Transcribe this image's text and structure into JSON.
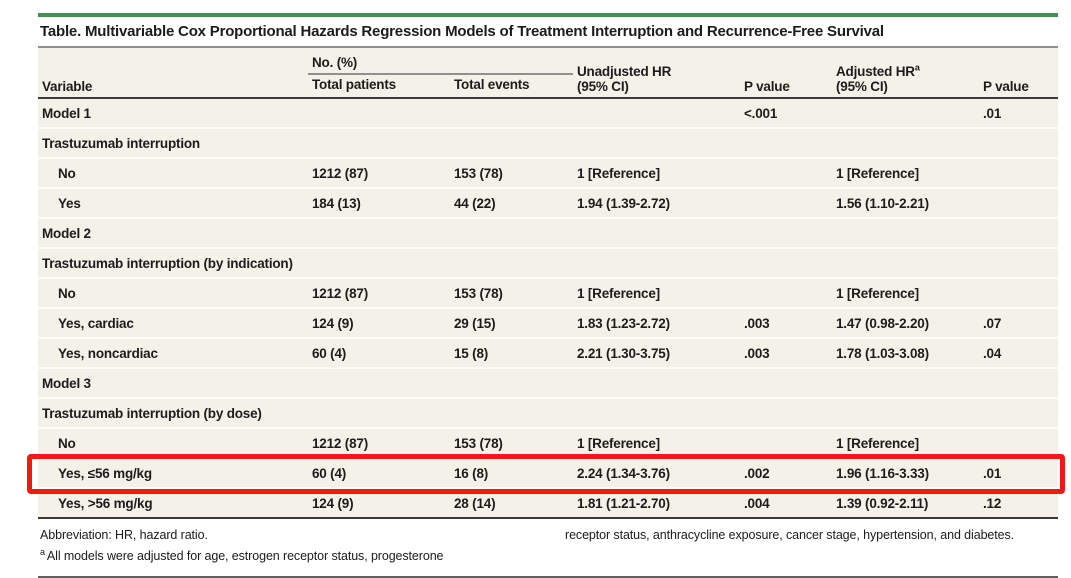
{
  "title": "Table. Multivariable Cox Proportional Hazards Regression Models of Treatment Interruption and Recurrence-Free Survival",
  "colors": {
    "accent_green": "#43914e",
    "table_background": "#f4f1e8",
    "highlight_red": "#ee1b10"
  },
  "table": {
    "header": {
      "variable": "Variable",
      "no_pct_group": "No. (%)",
      "total_patients": "Total patients",
      "total_events": "Total events",
      "unadjusted_hr_line1": "Unadjusted HR",
      "unadjusted_hr_line2": "(95% CI)",
      "adjusted_hr_line1": "Adjusted HR",
      "adjusted_hr_sup": "a",
      "adjusted_hr_line2": "(95% CI)",
      "p_value": "P value"
    },
    "rows": [
      {
        "label": "Model 1",
        "indent": false,
        "highlight": false,
        "cells": [
          "",
          "",
          "",
          "<.001",
          "",
          ".01"
        ]
      },
      {
        "label": "Trastuzumab interruption",
        "indent": false,
        "highlight": false,
        "cells": [
          "",
          "",
          "",
          "",
          "",
          ""
        ]
      },
      {
        "label": "No",
        "indent": true,
        "highlight": false,
        "cells": [
          "1212 (87)",
          "153 (78)",
          "1 [Reference]",
          "",
          "1 [Reference]",
          ""
        ]
      },
      {
        "label": "Yes",
        "indent": true,
        "highlight": false,
        "cells": [
          "184 (13)",
          "44 (22)",
          "1.94 (1.39-2.72)",
          "",
          "1.56 (1.10-2.21)",
          ""
        ]
      },
      {
        "label": "Model 2",
        "indent": false,
        "highlight": false,
        "cells": [
          "",
          "",
          "",
          "",
          "",
          ""
        ]
      },
      {
        "label": "Trastuzumab interruption (by indication)",
        "indent": false,
        "highlight": false,
        "cells": [
          "",
          "",
          "",
          "",
          "",
          ""
        ]
      },
      {
        "label": "No",
        "indent": true,
        "highlight": false,
        "cells": [
          "1212 (87)",
          "153 (78)",
          "1 [Reference]",
          "",
          "1 [Reference]",
          ""
        ]
      },
      {
        "label": "Yes, cardiac",
        "indent": true,
        "highlight": false,
        "cells": [
          "124 (9)",
          "29 (15)",
          "1.83 (1.23-2.72)",
          ".003",
          "1.47 (0.98-2.20)",
          ".07"
        ]
      },
      {
        "label": "Yes, noncardiac",
        "indent": true,
        "highlight": false,
        "cells": [
          "60 (4)",
          "15 (8)",
          "2.21 (1.30-3.75)",
          ".003",
          "1.78 (1.03-3.08)",
          ".04"
        ]
      },
      {
        "label": "Model 3",
        "indent": false,
        "highlight": false,
        "cells": [
          "",
          "",
          "",
          "",
          "",
          ""
        ]
      },
      {
        "label": "Trastuzumab interruption (by dose)",
        "indent": false,
        "highlight": false,
        "cells": [
          "",
          "",
          "",
          "",
          "",
          ""
        ]
      },
      {
        "label": "No",
        "indent": true,
        "highlight": false,
        "cells": [
          "1212 (87)",
          "153 (78)",
          "1 [Reference]",
          "",
          "1 [Reference]",
          ""
        ]
      },
      {
        "label": "Yes, ≤56 mg/kg",
        "indent": true,
        "highlight": true,
        "cells": [
          "60 (4)",
          "16 (8)",
          "2.24 (1.34-3.76)",
          ".002",
          "1.96 (1.16-3.33)",
          ".01"
        ]
      },
      {
        "label": "Yes, >56 mg/kg",
        "indent": true,
        "highlight": false,
        "cells": [
          "124 (9)",
          "28 (14)",
          "1.81 (1.21-2.70)",
          ".004",
          "1.39 (0.92-2.11)",
          ".12"
        ]
      }
    ]
  },
  "footnotes": {
    "abbreviation": "Abbreviation: HR, hazard ratio.",
    "note_a_marker": "a",
    "note_a_left": "All models were adjusted for age, estrogen receptor status, progesterone",
    "note_a_right": "receptor status, anthracycline exposure, cancer stage, hypertension, and diabetes."
  }
}
